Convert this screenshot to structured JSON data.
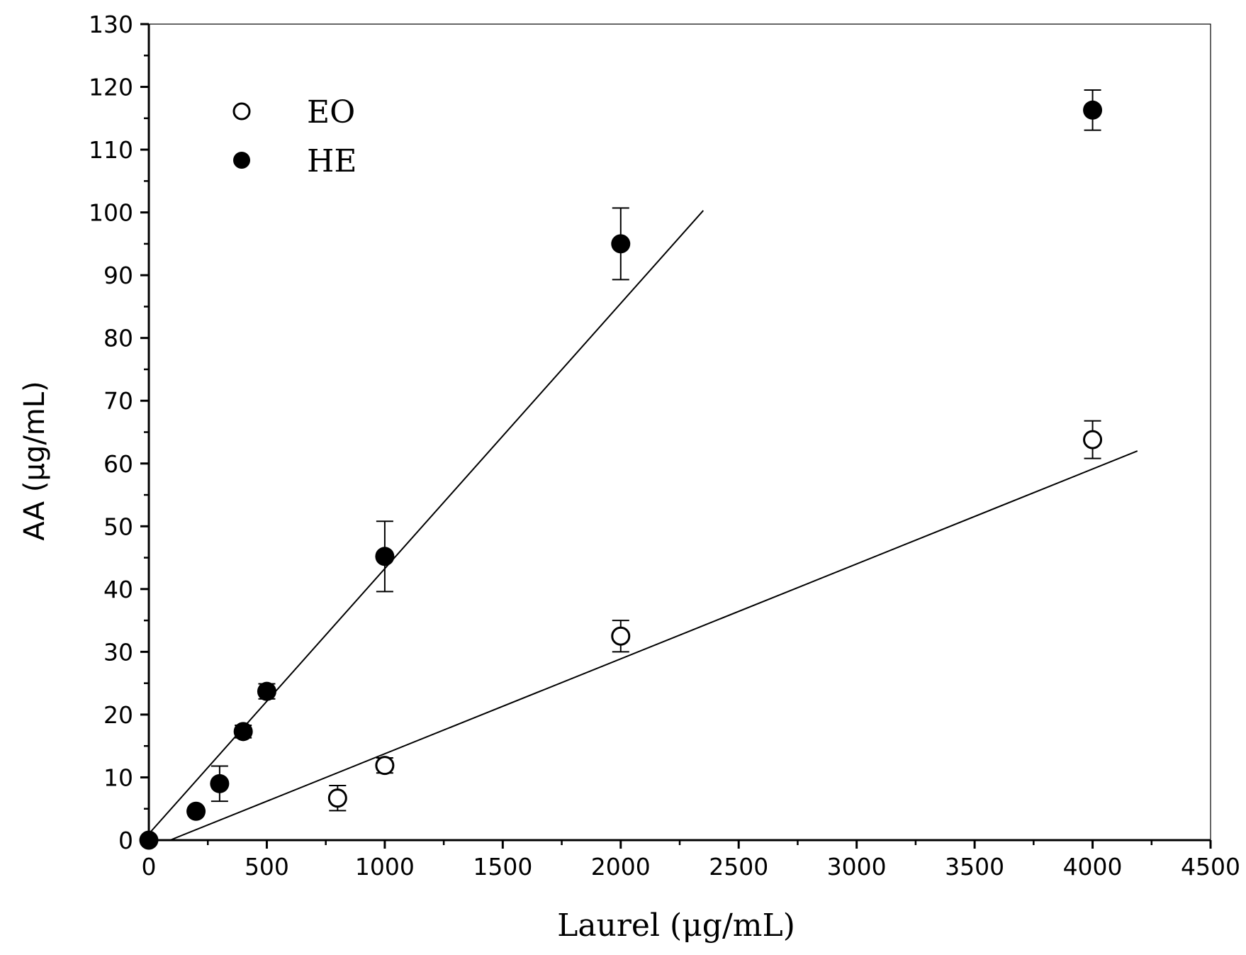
{
  "chart_data": {
    "type": "scatter",
    "xlabel": "Laurel (μg/mL)",
    "ylabel": "AA (μg/mL)",
    "xlim": [
      0,
      4500
    ],
    "ylim": [
      0,
      130
    ],
    "x_ticks": [
      0,
      500,
      1000,
      1500,
      2000,
      2500,
      3000,
      3500,
      4000,
      4500
    ],
    "y_ticks": [
      0,
      10,
      20,
      30,
      40,
      50,
      60,
      70,
      80,
      90,
      100,
      110,
      120,
      130
    ],
    "grid": false,
    "legend_position": "top-left",
    "series": [
      {
        "name": "EO",
        "marker": "open-circle",
        "points": [
          {
            "x": 800,
            "y": 6.7,
            "err": 2.0
          },
          {
            "x": 1000,
            "y": 11.9,
            "err": 1.2
          },
          {
            "x": 2000,
            "y": 32.5,
            "err": 2.5
          },
          {
            "x": 4000,
            "y": 63.8,
            "err": 3.0
          }
        ],
        "fit_line": {
          "x": [
            90,
            4190
          ],
          "y": [
            0,
            62
          ]
        }
      },
      {
        "name": "HE",
        "marker": "filled-circle",
        "points": [
          {
            "x": 0,
            "y": 0,
            "err": 0
          },
          {
            "x": 200,
            "y": 4.6,
            "err": 0.5
          },
          {
            "x": 300,
            "y": 9.0,
            "err": 2.8
          },
          {
            "x": 400,
            "y": 17.3,
            "err": 1.0
          },
          {
            "x": 500,
            "y": 23.7,
            "err": 1.2
          },
          {
            "x": 1000,
            "y": 45.2,
            "err": 5.6
          },
          {
            "x": 2000,
            "y": 95.0,
            "err": 5.7
          },
          {
            "x": 4000,
            "y": 116.3,
            "err": 3.2
          }
        ],
        "fit_line": {
          "x": [
            0,
            2350
          ],
          "y": [
            1,
            100.3
          ]
        }
      }
    ]
  }
}
